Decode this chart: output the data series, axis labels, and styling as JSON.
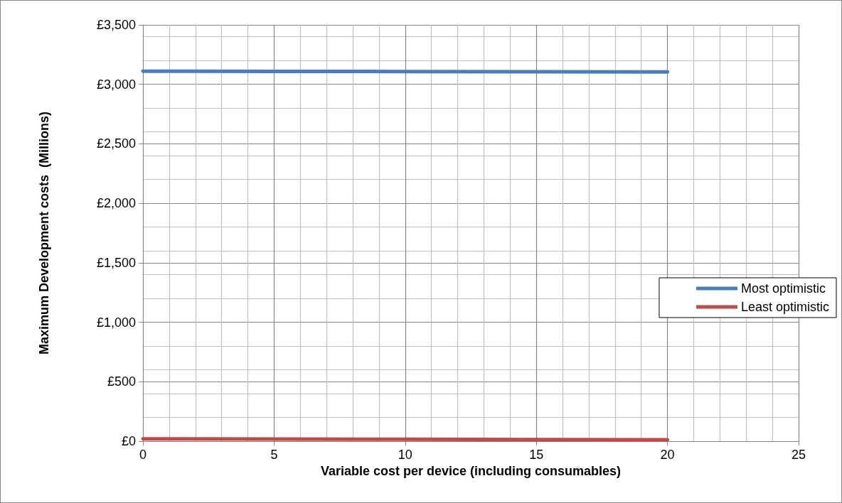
{
  "chart_data": {
    "type": "line",
    "xlabel": "Variable cost per device (including consumables)",
    "ylabel": "Maximum Development costs  (Millions)",
    "x": [
      0,
      5,
      10,
      15,
      20
    ],
    "series": [
      {
        "name": "Most optimistic",
        "color": "#4a7ebb",
        "values": [
          3110,
          3109,
          3108,
          3106,
          3105
        ]
      },
      {
        "name": "Least optimistic",
        "color": "#be4b48",
        "values": [
          20,
          18,
          16,
          14,
          12
        ]
      }
    ],
    "xlim": [
      0,
      25
    ],
    "xticks": [
      0,
      5,
      10,
      15,
      20,
      25
    ],
    "ylim": [
      0,
      3500
    ],
    "yticks": [
      {
        "value": 0,
        "label": "£0"
      },
      {
        "value": 500,
        "label": "£500"
      },
      {
        "value": 1000,
        "label": "£1,000"
      },
      {
        "value": 1500,
        "label": "£1,500"
      },
      {
        "value": 2000,
        "label": "£2,000"
      },
      {
        "value": 2500,
        "label": "£2,500"
      },
      {
        "value": 3000,
        "label": "£3,000"
      },
      {
        "value": 3500,
        "label": "£3,500"
      }
    ],
    "grid": true,
    "legend": "right",
    "marker": "none",
    "line_style": "solid"
  }
}
